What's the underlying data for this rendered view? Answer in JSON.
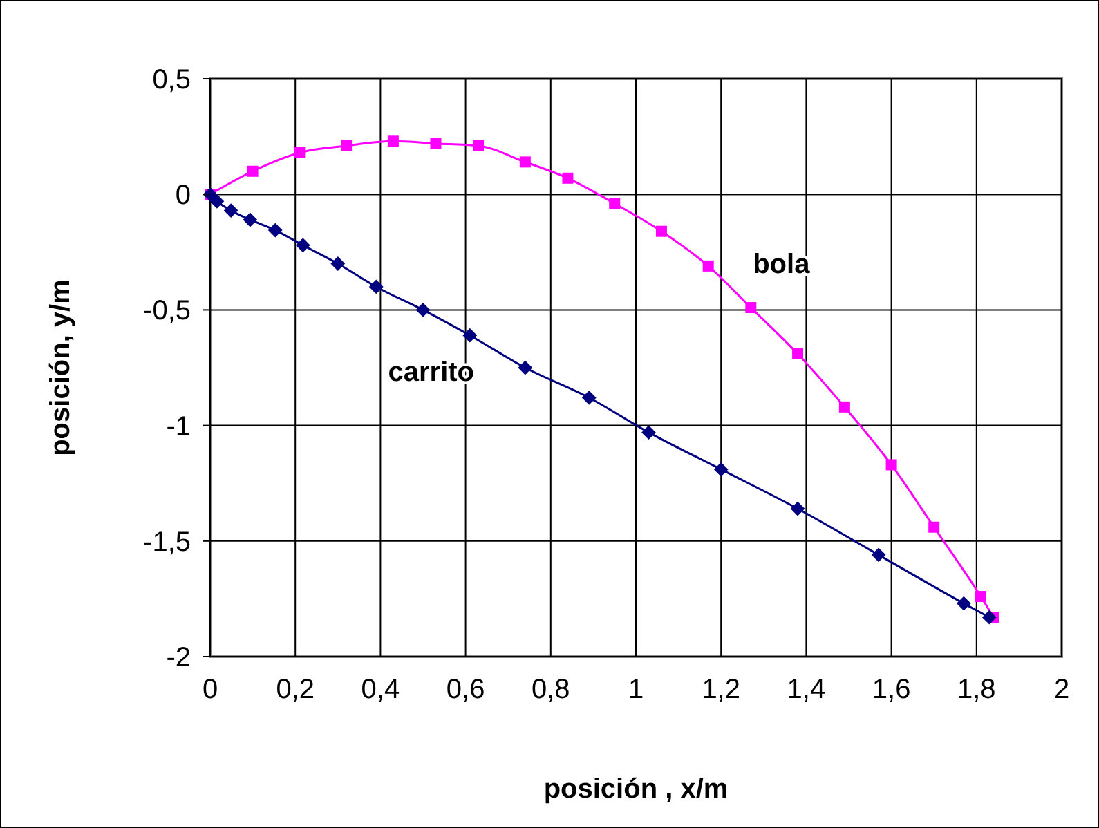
{
  "chart_data": {
    "type": "line",
    "xlabel": "posición , x/m",
    "ylabel": "posición, y/m",
    "xlim": [
      0,
      2
    ],
    "xticks": [
      0,
      {
        "value": 0.2,
        "label": "0,2"
      },
      {
        "value": 0.4,
        "label": "0,4"
      },
      {
        "value": 0.6,
        "label": "0,6"
      },
      {
        "value": 0.8,
        "label": "0,8"
      },
      1,
      {
        "value": 1.2,
        "label": "1,2"
      },
      {
        "value": 1.4,
        "label": "1,4"
      },
      {
        "value": 1.6,
        "label": "1,6"
      },
      {
        "value": 1.8,
        "label": "1,8"
      },
      2
    ],
    "ylim": [
      -2,
      0.5
    ],
    "yticks": [
      -2,
      {
        "value": -1.5,
        "label": "-1,5"
      },
      -1,
      {
        "value": -0.5,
        "label": "-0,5"
      },
      0,
      {
        "value": 0.5,
        "label": "0,5"
      }
    ],
    "grid": true,
    "series": [
      {
        "name": "bola",
        "color": "#ff00ff",
        "marker": "square",
        "x": [
          0,
          0.1,
          0.21,
          0.32,
          0.43,
          0.53,
          0.63,
          0.74,
          0.84,
          0.95,
          1.06,
          1.17,
          1.27,
          1.38,
          1.49,
          1.6,
          1.7,
          1.81,
          1.84
        ],
        "values": [
          0,
          0.1,
          0.18,
          0.21,
          0.23,
          0.22,
          0.21,
          0.14,
          0.07,
          -0.04,
          -0.16,
          -0.31,
          -0.49,
          -0.69,
          -0.92,
          -1.17,
          -1.44,
          -1.74,
          -1.83
        ]
      },
      {
        "name": "carrito",
        "color": "#000080",
        "marker": "diamond",
        "x": [
          0,
          0.016,
          0.049,
          0.094,
          0.153,
          0.218,
          0.3,
          0.39,
          0.5,
          0.61,
          0.74,
          0.89,
          1.03,
          1.2,
          1.38,
          1.57,
          1.77,
          1.83
        ],
        "values": [
          0,
          -0.03,
          -0.07,
          -0.11,
          -0.155,
          -0.22,
          -0.3,
          -0.4,
          -0.5,
          -0.61,
          -0.75,
          -0.88,
          -1.03,
          -1.19,
          -1.36,
          -1.56,
          -1.77,
          -1.83
        ]
      }
    ]
  }
}
